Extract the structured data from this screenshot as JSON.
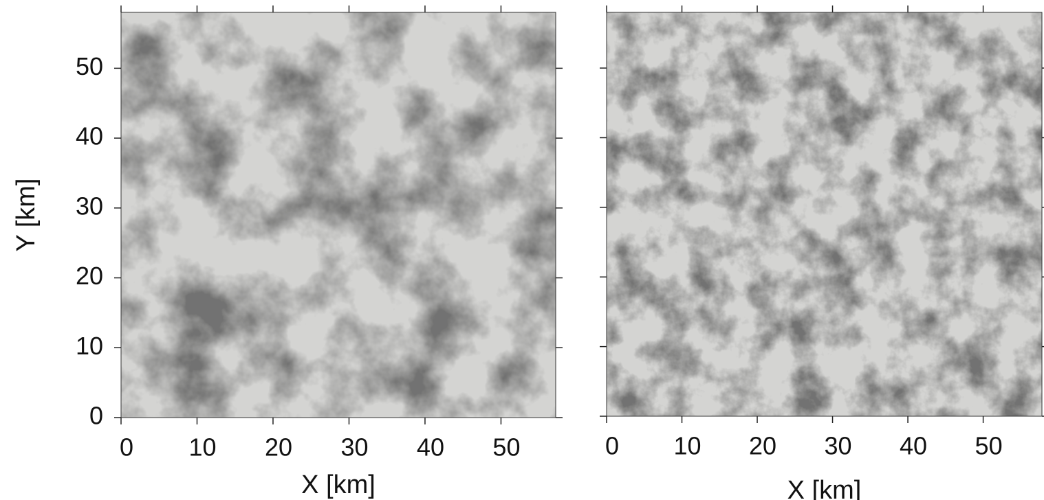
{
  "chart_data": [
    {
      "type": "image",
      "xlabel": "X [km]",
      "ylabel": "Y [km]",
      "xlim": [
        0,
        57.2
      ],
      "ylim": [
        0,
        58
      ],
      "xticks": [
        0,
        10,
        20,
        30,
        40,
        50
      ],
      "yticks": [
        0,
        10,
        20,
        30,
        40,
        50
      ],
      "ytick_labels": true,
      "colormap": [
        "#f2f2f0",
        "#cfcfcd",
        "#111111"
      ]
    },
    {
      "type": "image",
      "xlabel": "X [km]",
      "xlim": [
        0,
        57.8
      ],
      "ylim": [
        0,
        58
      ],
      "xticks": [
        0,
        10,
        20,
        30,
        40,
        50
      ],
      "yticks": [
        0,
        10,
        20,
        30,
        40,
        50
      ],
      "ytick_labels": false,
      "colormap": [
        "#f2f2f0",
        "#cfcfcd",
        "#111111"
      ]
    }
  ]
}
